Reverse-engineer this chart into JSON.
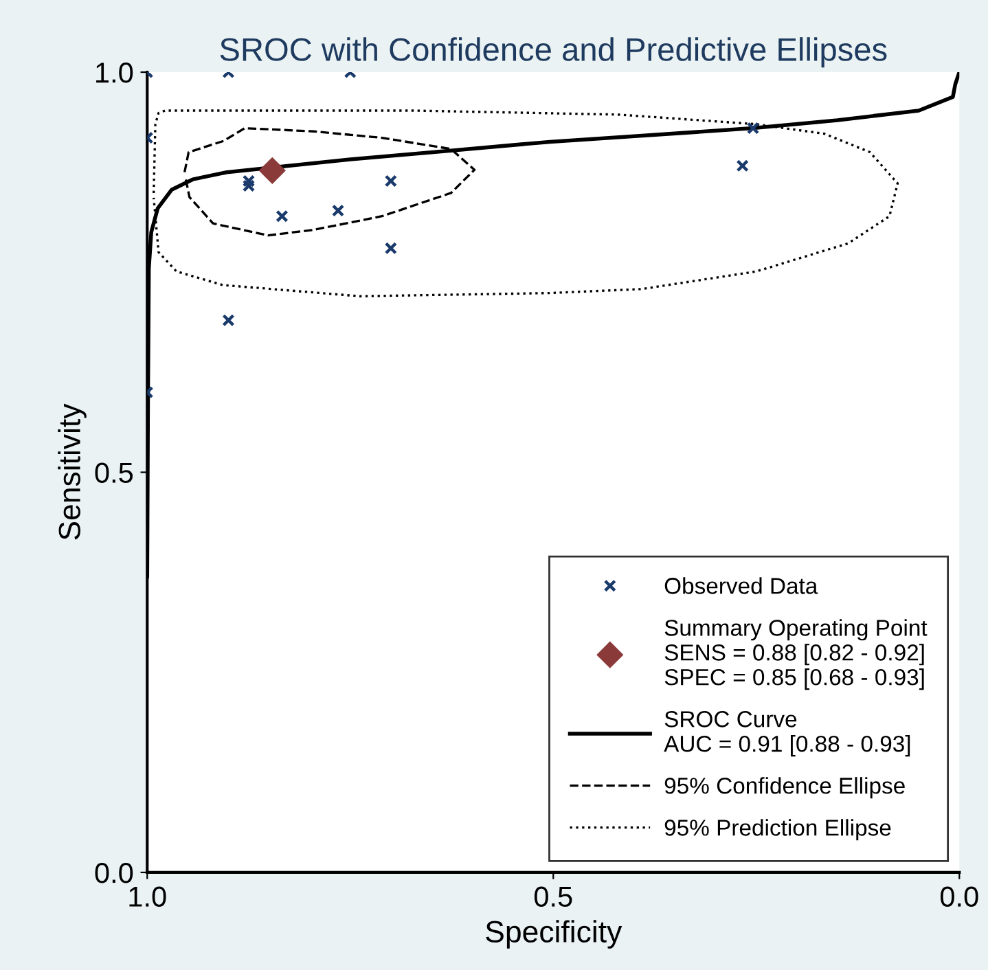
{
  "chart_data": {
    "type": "scatter",
    "title": "SROC with Confidence and Predictive Ellipses",
    "xlabel": "Specificity",
    "ylabel": "Sensitivity",
    "xlim": [
      1.0,
      0.0
    ],
    "ylim": [
      0.0,
      1.0
    ],
    "xticks": [
      {
        "value": 1.0,
        "label": "1.0"
      },
      {
        "value": 0.5,
        "label": "0.5"
      },
      {
        "value": 0.0,
        "label": "0.0"
      }
    ],
    "yticks": [
      {
        "value": 0.0,
        "label": "0.0"
      },
      {
        "value": 0.5,
        "label": "0.5"
      },
      {
        "value": 1.0,
        "label": "1.0"
      }
    ],
    "grid": false,
    "legend": "bottom right",
    "series": [
      {
        "name": "Observed Data",
        "marker": "cross",
        "color": "#1a3a6b",
        "x": [
          1.0,
          0.9,
          0.75,
          1.0,
          0.875,
          0.875,
          0.834,
          0.765,
          0.7,
          0.7,
          0.9,
          1.0,
          0.254,
          0.267
        ],
        "values": [
          1.0,
          1.0,
          1.0,
          0.918,
          0.864,
          0.858,
          0.82,
          0.827,
          0.864,
          0.78,
          0.69,
          0.6,
          0.93,
          0.883
        ]
      },
      {
        "name": "Summary Operating Point\nSENS = 0.88 [0.82 - 0.92]\nSPEC = 0.85 [0.68 - 0.93]",
        "marker": "diamond",
        "color": "#8b3a3a",
        "x": [
          0.846
        ],
        "values": [
          0.877
        ]
      },
      {
        "name": "SROC Curve\nAUC = 0.91 [0.88 - 0.93]",
        "type": "line",
        "line_style": "solid",
        "color": "#000000",
        "x": [
          1.0,
          0.999,
          0.998,
          0.995,
          0.987,
          0.97,
          0.944,
          0.902,
          0.75,
          0.626,
          0.504,
          0.4,
          0.254,
          0.15,
          0.05,
          0.008,
          0.005,
          0.0
        ],
        "values": [
          0.37,
          0.6,
          0.755,
          0.8,
          0.83,
          0.853,
          0.866,
          0.875,
          0.891,
          0.902,
          0.913,
          0.92,
          0.93,
          0.94,
          0.952,
          0.969,
          0.985,
          1.0
        ]
      },
      {
        "name": "95% Confidence Ellipse",
        "type": "line",
        "line_style": "dashed",
        "color": "#000000",
        "x": [
          0.954,
          0.949,
          0.906,
          0.88,
          0.795,
          0.711,
          0.626,
          0.597,
          0.626,
          0.711,
          0.795,
          0.851,
          0.919,
          0.948,
          0.953
        ],
        "values": [
          0.875,
          0.9,
          0.914,
          0.93,
          0.926,
          0.918,
          0.904,
          0.878,
          0.849,
          0.82,
          0.803,
          0.796,
          0.811,
          0.844,
          0.869
        ]
      },
      {
        "name": "95% Prediction Ellipse",
        "type": "line",
        "line_style": "dotted",
        "color": "#000000",
        "x": [
          0.992,
          0.99,
          0.986,
          0.978,
          0.673,
          0.42,
          0.25,
          0.166,
          0.11,
          0.076,
          0.086,
          0.137,
          0.25,
          0.391,
          0.504,
          0.738,
          0.907,
          0.964,
          0.986,
          0.992
        ],
        "values": [
          0.849,
          0.935,
          0.949,
          0.952,
          0.952,
          0.947,
          0.935,
          0.923,
          0.9,
          0.861,
          0.82,
          0.786,
          0.751,
          0.729,
          0.724,
          0.72,
          0.734,
          0.751,
          0.775,
          0.843
        ]
      }
    ]
  }
}
